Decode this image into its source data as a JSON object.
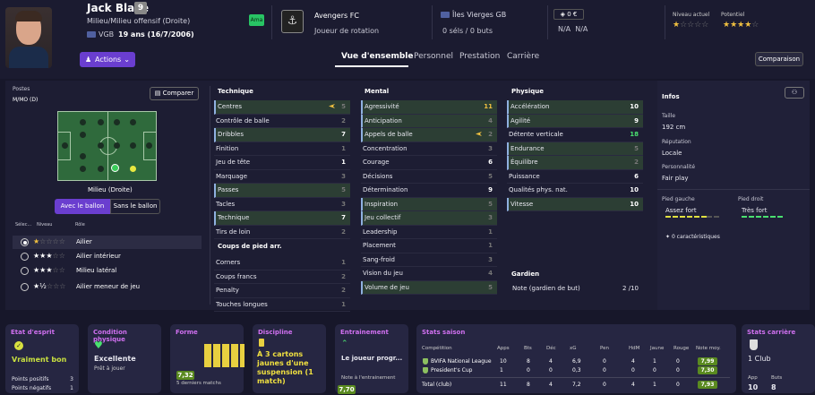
{
  "player": {
    "name": "Jack Blake",
    "number": "9",
    "position": "Milieu/Milieu offensif (Droite)",
    "nation": "VGB",
    "age": "19 ans (16/7/2006)",
    "status": "Ama",
    "actions": "Actions"
  },
  "club": {
    "name": "Avengers FC",
    "role": "Joueur de rotation"
  },
  "international": {
    "country": "Îles Vierges GB",
    "caps": "0 séls / 0 buts"
  },
  "value": {
    "money": "0 €",
    "na1": "N/A",
    "na2": "N/A"
  },
  "ratings": {
    "current_label": "Niveau actuel",
    "potential_label": "Potentiel",
    "current_stars": 1,
    "potential_stars": 4
  },
  "tabs": [
    "Vue d'ensemble",
    "Personnel",
    "Prestation",
    "Carrière"
  ],
  "compare_top": "Comparaison",
  "positions": {
    "label": "Postes",
    "value": "M/MO (D)",
    "compare": "Comparer",
    "role_name": "Milieu (Droite)",
    "with_ball": "Avec le ballon",
    "without_ball": "Sans le ballon",
    "col_sel": "Sélec...",
    "col_level": "Niveau",
    "col_role": "Rôle"
  },
  "roles": [
    {
      "name": "Ailier",
      "stars": 1,
      "sel": true
    },
    {
      "name": "Ailier intérieur",
      "stars": 3
    },
    {
      "name": "Milieu latéral",
      "stars": 3
    },
    {
      "name": "Ailier meneur de jeu",
      "stars": 1.5
    }
  ],
  "technique": {
    "title": "Technique",
    "rows": [
      [
        "Centres",
        "5"
      ],
      [
        "Contrôle de balle",
        "2"
      ],
      [
        "Dribbles",
        "7"
      ],
      [
        "Finition",
        "1"
      ],
      [
        "Jeu de tête",
        "1"
      ],
      [
        "Marquage",
        "3"
      ],
      [
        "Passes",
        "5"
      ],
      [
        "Tacles",
        "3"
      ],
      [
        "Technique",
        "7"
      ],
      [
        "Tirs de loin",
        "2"
      ]
    ]
  },
  "setpieces": {
    "title": "Coups de pied arr.",
    "rows": [
      [
        "Corners",
        "1"
      ],
      [
        "Coups francs",
        "2"
      ],
      [
        "Penalty",
        "2"
      ],
      [
        "Touches longues",
        "1"
      ]
    ]
  },
  "mental": {
    "title": "Mental",
    "rows": [
      [
        "Agressivité",
        "11"
      ],
      [
        "Anticipation",
        "4"
      ],
      [
        "Appels de balle",
        "2"
      ],
      [
        "Concentration",
        "3"
      ],
      [
        "Courage",
        "6"
      ],
      [
        "Décisions",
        "5"
      ],
      [
        "Détermination",
        "9"
      ],
      [
        "Inspiration",
        "5"
      ],
      [
        "Jeu collectif",
        "3"
      ],
      [
        "Leadership",
        "1"
      ],
      [
        "Placement",
        "1"
      ],
      [
        "Sang-froid",
        "3"
      ],
      [
        "Vision du jeu",
        "4"
      ],
      [
        "Volume de jeu",
        "5"
      ]
    ]
  },
  "physique": {
    "title": "Physique",
    "rows": [
      [
        "Accélération",
        "10"
      ],
      [
        "Agilité",
        "9"
      ],
      [
        "Détente verticale",
        "18"
      ],
      [
        "Endurance",
        "5"
      ],
      [
        "Équilibre",
        "2"
      ],
      [
        "Puissance",
        "6"
      ],
      [
        "Qualités phys. nat.",
        "10"
      ],
      [
        "Vitesse",
        "10"
      ]
    ]
  },
  "gardien": {
    "title": "Gardien",
    "note": "Note (gardien de but)",
    "value": "2 /10"
  },
  "infos": {
    "title": "Infos",
    "taille_l": "Taille",
    "taille": "192 cm",
    "rep_l": "Réputation",
    "rep": "Locale",
    "pers_l": "Personnalité",
    "pers": "Fair play",
    "pg_l": "Pied gauche",
    "pg": "Assez fort",
    "pd_l": "Pied droit",
    "pd": "Très fort",
    "car": "0 caractéristiques"
  },
  "etat": {
    "title": "Etat d'esprit",
    "value": "Vraiment bon",
    "pp_l": "Points positifs",
    "pp": "3",
    "pn_l": "Points négatifs",
    "pn": "1"
  },
  "condition": {
    "title": "Condition physique",
    "value": "Excellente",
    "sub": "Prêt à jouer"
  },
  "forme": {
    "title": "Forme",
    "avg": "7,32",
    "sub": "5 derniers matchs"
  },
  "discipline": {
    "title": "Discipline",
    "text": "À 3 cartons jaunes d'une suspension (1 match)"
  },
  "entrainement": {
    "title": "Entrainement",
    "text": "Le joueur progr...",
    "sub": "Note à l'entrainement",
    "note": "7,70"
  },
  "saison": {
    "title": "Stats saison",
    "headers": [
      "Compétition",
      "Apps",
      "Bts",
      "Déc",
      "xG",
      "Pen",
      "HdM",
      "Jaune",
      "Rouge",
      "Note moy."
    ],
    "rows": [
      [
        "BVIFA National League",
        "10",
        "8",
        "4",
        "6,9",
        "0",
        "4",
        "1",
        "0",
        "7,99"
      ],
      [
        "President's Cup",
        "1",
        "0",
        "0",
        "0,3",
        "0",
        "0",
        "0",
        "0",
        "7,30"
      ],
      [
        "Total (club)",
        "11",
        "8",
        "4",
        "7,2",
        "0",
        "4",
        "1",
        "0",
        "7,93"
      ]
    ]
  },
  "carriere": {
    "title": "Stats carrière",
    "club": "1 Club",
    "app_l": "App",
    "app": "10",
    "buts_l": "Buts",
    "buts": "8"
  }
}
